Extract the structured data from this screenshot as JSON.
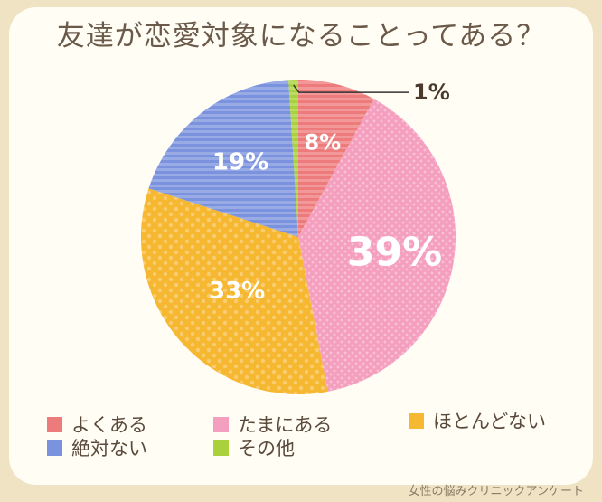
{
  "chart_data": {
    "type": "pie",
    "title": "友達が恋愛対象になることってある？",
    "slices": [
      {
        "label": "よくある",
        "value": 8,
        "display": "8%",
        "color": "#ee7b7b"
      },
      {
        "label": "たまにある",
        "value": 39,
        "display": "39%",
        "color": "#f59fbf"
      },
      {
        "label": "ほとんどない",
        "value": 33,
        "display": "33%",
        "color": "#f6b731"
      },
      {
        "label": "絶対ない",
        "value": 19,
        "display": "19%",
        "color": "#7b93de"
      },
      {
        "label": "その他",
        "value": 1,
        "display": "1%",
        "color": "#a8d13c"
      }
    ],
    "legend_placement": "bottom"
  },
  "footer": "女性の悩みクリニックアンケート"
}
